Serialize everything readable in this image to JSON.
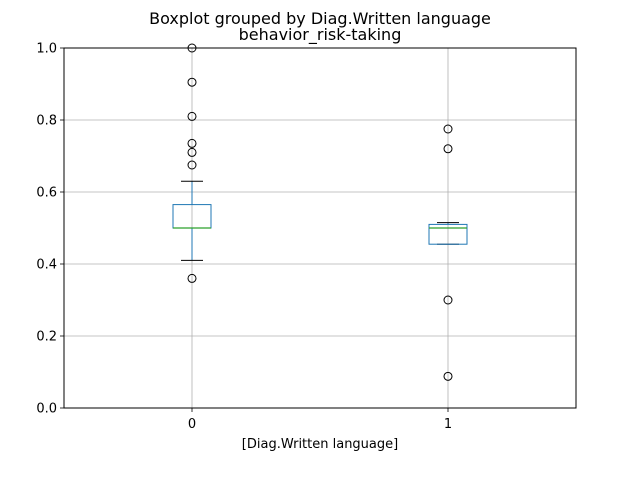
{
  "figure": {
    "suptitle": "Boxplot grouped by Diag.Written language",
    "title": "behavior_risk-taking"
  },
  "chart_data": {
    "type": "box",
    "title": "behavior_risk-taking",
    "suptitle": "Boxplot grouped by Diag.Written language",
    "xlabel": "[Diag.Written language]",
    "ylabel": "",
    "categories": [
      "0",
      "1"
    ],
    "ylim": [
      0.0,
      1.0
    ],
    "yticks": [
      0.0,
      0.2,
      0.4,
      0.6,
      0.8,
      1.0
    ],
    "ytick_labels": [
      "0.0",
      "0.2",
      "0.4",
      "0.6",
      "0.8",
      "1.0"
    ],
    "grid": true,
    "colors": {
      "box": "#1f77b4",
      "median": "#2ca02c",
      "whisker": "#000000",
      "grid": "#b0b0b0"
    },
    "boxes": [
      {
        "category": "0",
        "whisker_low": 0.41,
        "q1": 0.5,
        "median": 0.5,
        "q3": 0.565,
        "whisker_high": 0.63,
        "outliers": [
          1.0,
          0.905,
          0.81,
          0.735,
          0.71,
          0.675,
          0.36
        ]
      },
      {
        "category": "1",
        "whisker_low": 0.455,
        "q1": 0.455,
        "median": 0.5,
        "q3": 0.51,
        "whisker_high": 0.515,
        "outliers": [
          0.775,
          0.72,
          0.3,
          0.088
        ]
      }
    ]
  }
}
